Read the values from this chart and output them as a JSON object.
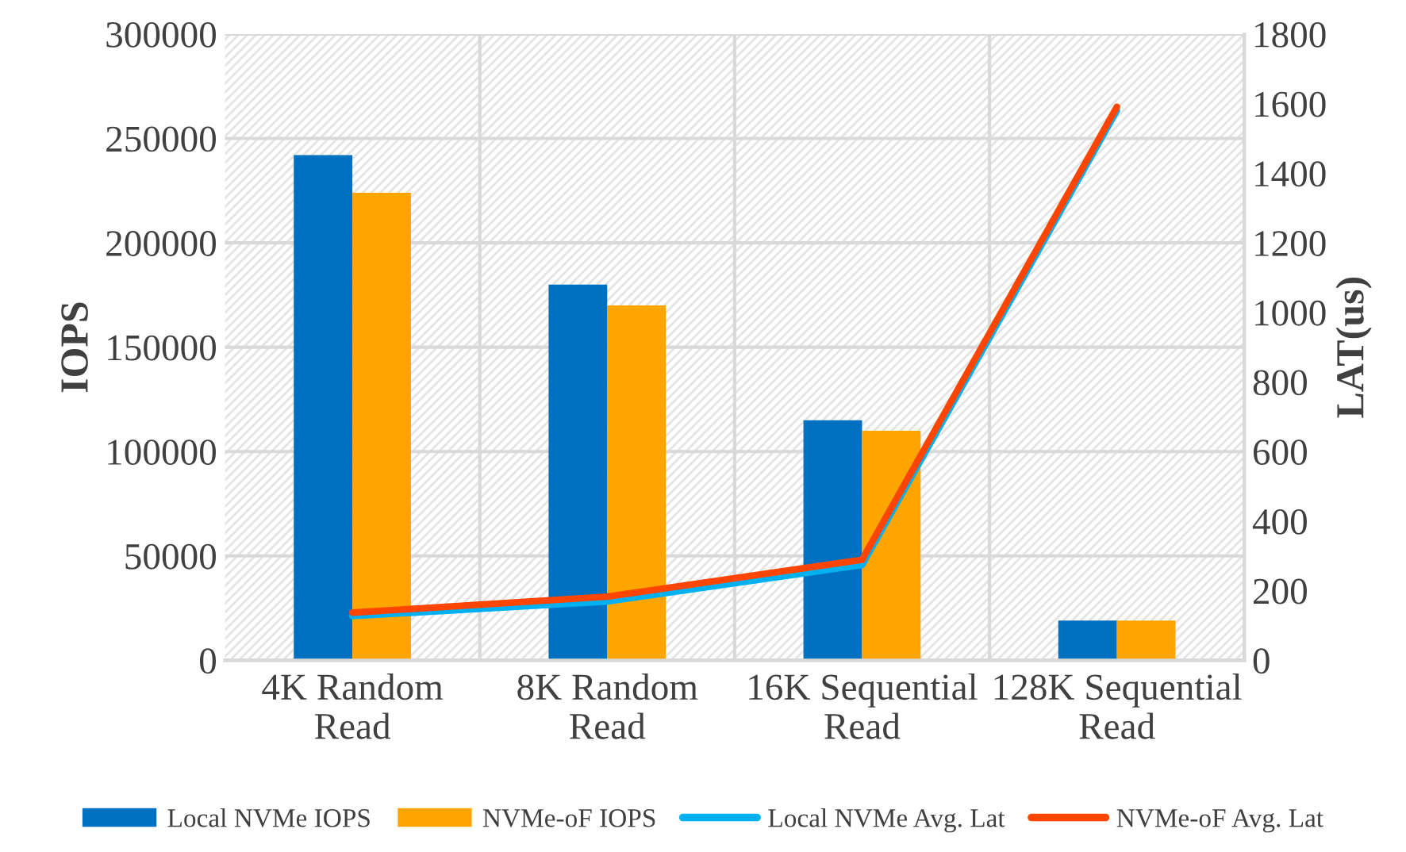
{
  "chart_data": {
    "type": "bar",
    "categories": [
      "4K Random\nRead",
      "8K Random\nRead",
      "16K Sequential\nRead",
      "128K Sequential\nRead"
    ],
    "series": [
      {
        "name": "Local NVMe IOPS",
        "color": "#0070c0",
        "values": [
          242000,
          180000,
          115000,
          19000
        ]
      },
      {
        "name": "NVMe-oF IOPS",
        "color": "#ffa500",
        "values": [
          224000,
          170000,
          110000,
          19000
        ]
      },
      {
        "name": "Local NVMe Avg. Lat",
        "type": "line",
        "axis": "y2",
        "color": "#00b0f0",
        "values": [
          127,
          169,
          274,
          1580
        ]
      },
      {
        "name": "NVMe-oF Avg. Lat",
        "type": "line",
        "axis": "y2",
        "color": "#ff4500",
        "values": [
          137,
          183,
          289,
          1591
        ]
      }
    ],
    "ylabel": "IOPS",
    "y2label": "LAT(us)",
    "ylim": [
      0,
      300000
    ],
    "yticks": [
      0,
      50000,
      100000,
      150000,
      200000,
      250000,
      300000
    ],
    "y2lim": [
      0,
      1800
    ],
    "y2ticks": [
      0,
      200,
      400,
      600,
      800,
      1000,
      1200,
      1400,
      1600,
      1800
    ],
    "grid": true,
    "legend": "bottom"
  }
}
